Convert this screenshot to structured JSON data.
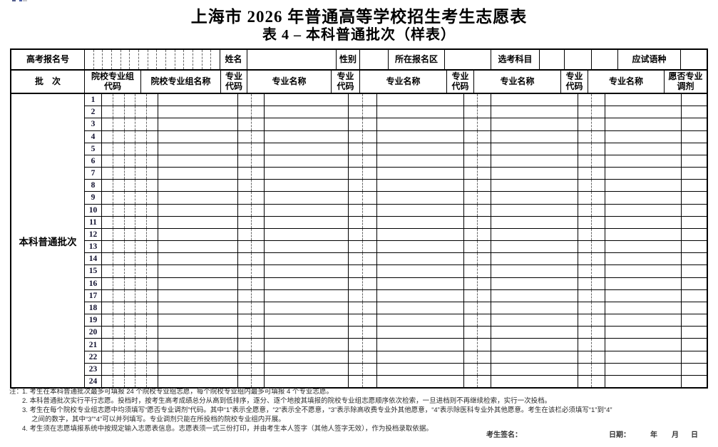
{
  "title": "上海市 2026 年普通高等学校招生考生志愿表",
  "subtitle": "表 4 – 本科普通批次（样表）",
  "header_row1": {
    "exam_no_label": "高考报名号",
    "name_label": "姓名",
    "gender_label": "性别",
    "district_label": "所在报名区",
    "subjects_label": "选考科目",
    "language_label": "应试语种"
  },
  "header_row2": {
    "batch_label": "批　次",
    "group_code_line1": "院校专业组",
    "group_code_line2": "代码",
    "group_name_label": "院校专业组名称",
    "major_code_line1": "专业",
    "major_code_line2": "代码",
    "major_name_label": "专业名称",
    "adjust_line1": "愿否专业",
    "adjust_line2": "调剂"
  },
  "table": {
    "batch_name": "本科普通批次",
    "row_numbers": [
      1,
      2,
      3,
      4,
      5,
      6,
      7,
      8,
      9,
      10,
      11,
      12,
      13,
      14,
      15,
      16,
      17,
      18,
      19,
      20,
      21,
      22,
      23,
      24
    ],
    "exam_no_digit_boxes": 15,
    "group_code_boxes": 5,
    "major_code_boxes": 2
  },
  "notes": {
    "prefix": "注：",
    "lines": [
      {
        "indent": 1,
        "text": "1. 考生在本科普通批次最多可填报 24 个院校专业组志愿，每个院校专业组内最多可填报 4 个专业志愿。"
      },
      {
        "indent": 1,
        "text": "2. 本科普通批次实行平行志愿。投档时，按考生高考成绩总分从高到低排序，逐分、逐个地按其填报的院校专业组志愿顺序依次检索，一旦进档则不再继续检索，实行一次投档。"
      },
      {
        "indent": 1,
        "text": "3. 考生在每个院校专业组志愿中均须填写“愿否专业调剂”代码。其中“1”表示全愿意，“2”表示全不愿意，“3”表示除高收费专业外其他愿意，“4”表示除医科专业外其他愿意。考生在该栏必须填写“1”到“4”"
      },
      {
        "indent": 2,
        "text": "之间的数字，其中“3”“4”可以并列填写。专业调剂只能在所投档的院校专业组内开展。"
      },
      {
        "indent": 1,
        "text": "4. 考生须在志愿填报系统中按规定输入志愿表信息。志愿表须一式三份打印，并由考生本人签字（其他人签字无效），作为投档录取依据。"
      }
    ]
  },
  "footer": {
    "signature_label": "考生签名：",
    "date_label": "日期：",
    "year_label": "年",
    "month_label": "月",
    "day_label": "日"
  },
  "colors": {
    "border": "#000000",
    "dashed_divider": "#666666",
    "note_text": "#2a2a2a"
  },
  "edge_marks": [
    {
      "x": 17,
      "w": 5,
      "color": "#55608c"
    },
    {
      "x": 27,
      "w": 4,
      "color": "#4a5faa"
    },
    {
      "x": 32,
      "w": 6,
      "color": "#c8c8cc"
    }
  ]
}
